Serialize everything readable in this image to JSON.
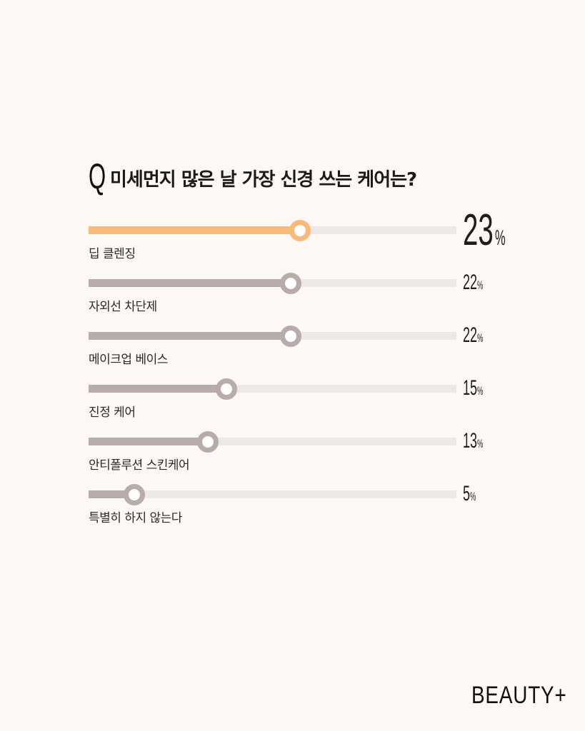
{
  "question": {
    "mark": "Q",
    "text": "미세먼지 많은 날 가장 신경 쓰는 케어는?"
  },
  "chart_data": {
    "type": "bar",
    "categories": [
      "딥 클렌징",
      "자외선 차단제",
      "메이크업 베이스",
      "진정 케어",
      "안티폴루션 스킨케어",
      "특별히 하지 않는다"
    ],
    "values": [
      23,
      22,
      22,
      15,
      13,
      5
    ],
    "value_labels": [
      "23%",
      "22%",
      "22%",
      "15%",
      "13%",
      "5%"
    ],
    "unit": "%",
    "highlight_index": 0,
    "xlim": [
      0,
      40
    ],
    "colors": {
      "highlight": "#f9b978",
      "default": "#b7aca9",
      "track": "#ece8e6"
    }
  },
  "brand": "BEAUTY+"
}
